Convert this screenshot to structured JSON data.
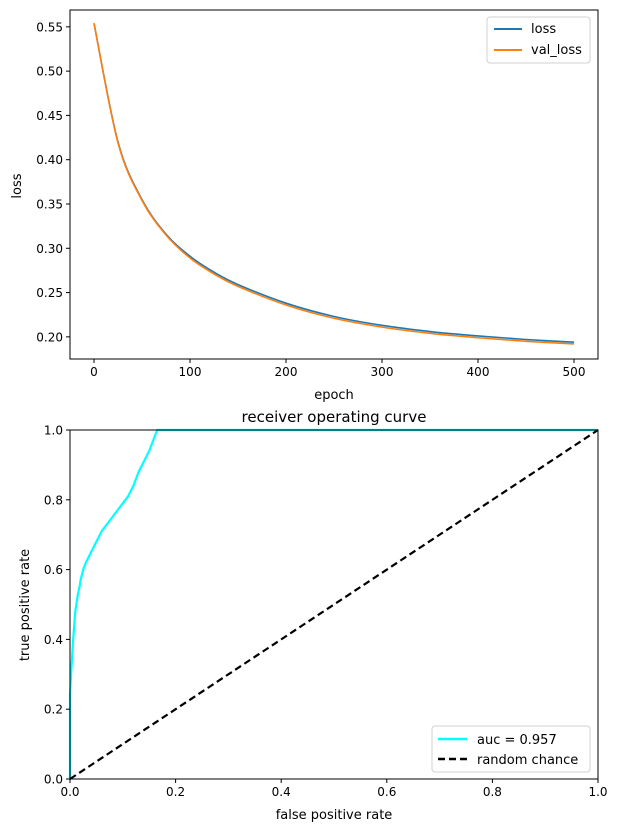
{
  "chart_data": [
    {
      "type": "line",
      "title": "",
      "xlabel": "epoch",
      "ylabel": "loss",
      "xlim": [
        -25,
        525
      ],
      "ylim": [
        0.175,
        0.569
      ],
      "xticks": [
        0,
        100,
        200,
        300,
        400,
        500
      ],
      "yticks": [
        0.2,
        0.25,
        0.3,
        0.35,
        0.4,
        0.45,
        0.5,
        0.55
      ],
      "ytick_labels": [
        "0.20",
        "0.25",
        "0.30",
        "0.35",
        "0.40",
        "0.45",
        "0.50",
        "0.55"
      ],
      "grid": false,
      "legend": "top-right",
      "series": [
        {
          "name": "loss",
          "color": "#1f77b4",
          "x": [
            0,
            25,
            50,
            75,
            100,
            125,
            150,
            200,
            250,
            300,
            350,
            400,
            450,
            500
          ],
          "values": [
            0.554,
            0.42,
            0.355,
            0.316,
            0.291,
            0.273,
            0.259,
            0.238,
            0.223,
            0.213,
            0.206,
            0.201,
            0.197,
            0.194
          ]
        },
        {
          "name": "val_loss",
          "color": "#ff7f0e",
          "x": [
            0,
            25,
            50,
            75,
            100,
            125,
            150,
            200,
            250,
            300,
            350,
            400,
            450,
            500
          ],
          "values": [
            0.554,
            0.419,
            0.354,
            0.315,
            0.289,
            0.271,
            0.257,
            0.236,
            0.221,
            0.211,
            0.204,
            0.199,
            0.195,
            0.192
          ]
        }
      ]
    },
    {
      "type": "line",
      "title": "receiver operating curve",
      "xlabel": "false positive rate",
      "ylabel": "true positive rate",
      "xlim": [
        0,
        1
      ],
      "ylim": [
        0,
        1
      ],
      "xticks": [
        0.0,
        0.2,
        0.4,
        0.6,
        0.8,
        1.0
      ],
      "yticks": [
        0.0,
        0.2,
        0.4,
        0.6,
        0.8,
        1.0
      ],
      "xtick_labels": [
        "0.0",
        "0.2",
        "0.4",
        "0.6",
        "0.8",
        "1.0"
      ],
      "ytick_labels": [
        "0.0",
        "0.2",
        "0.4",
        "0.6",
        "0.8",
        "1.0"
      ],
      "grid": false,
      "legend": "bottom-right",
      "series": [
        {
          "name": "auc = 0.957",
          "color": "#00ffff",
          "style": "solid",
          "x": [
            0.0,
            0.0,
            0.002,
            0.004,
            0.006,
            0.008,
            0.01,
            0.012,
            0.015,
            0.018,
            0.02,
            0.025,
            0.03,
            0.04,
            0.05,
            0.06,
            0.07,
            0.08,
            0.09,
            0.1,
            0.11,
            0.12,
            0.125,
            0.13,
            0.14,
            0.15,
            0.155,
            0.16,
            0.165,
            1.0
          ],
          "values": [
            0.0,
            0.24,
            0.3,
            0.35,
            0.4,
            0.44,
            0.48,
            0.5,
            0.53,
            0.55,
            0.57,
            0.6,
            0.62,
            0.65,
            0.68,
            0.71,
            0.73,
            0.75,
            0.77,
            0.79,
            0.81,
            0.84,
            0.86,
            0.88,
            0.91,
            0.94,
            0.96,
            0.98,
            1.0,
            1.0
          ]
        },
        {
          "name": "random chance",
          "color": "#000000",
          "style": "dashed",
          "x": [
            0.0,
            1.0
          ],
          "values": [
            0.0,
            1.0
          ]
        }
      ]
    }
  ]
}
